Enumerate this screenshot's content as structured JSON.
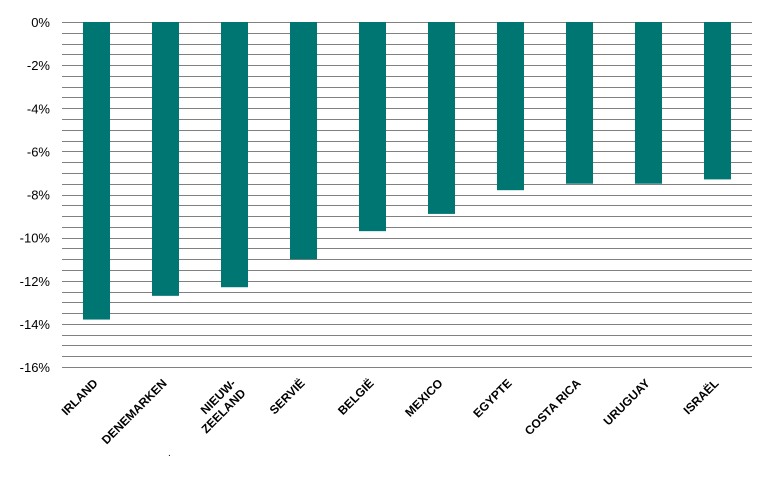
{
  "chart_data": {
    "type": "bar",
    "title": "",
    "xlabel": "",
    "ylabel": "",
    "categories": [
      [
        "IRLAND"
      ],
      [
        "DENEMARKEN"
      ],
      [
        "NIEUW-",
        "ZEELAND"
      ],
      [
        "SERVIË"
      ],
      [
        "BELGIË"
      ],
      [
        "MEXICO"
      ],
      [
        "EGYPTE"
      ],
      [
        "COSTA RICA"
      ],
      [
        "URUGUAY"
      ],
      [
        "ISRAËL"
      ]
    ],
    "values": [
      -13.8,
      -12.7,
      -12.3,
      -11.0,
      -9.7,
      -8.9,
      -7.8,
      -7.5,
      -7.5,
      -7.3
    ],
    "ylim": [
      -16,
      0
    ],
    "y_ticks": [
      0,
      -2,
      -4,
      -6,
      -8,
      -10,
      -12,
      -14,
      -16
    ],
    "y_tick_labels": [
      "0%",
      "-2%",
      "-4%",
      "-6%",
      "-8%",
      "-10%",
      "-12%",
      "-14%",
      "-16%"
    ],
    "minor_grid_step": 0.5,
    "grid": true,
    "legend": "none",
    "bar_color": "#007672",
    "grid_color": "#808080"
  }
}
